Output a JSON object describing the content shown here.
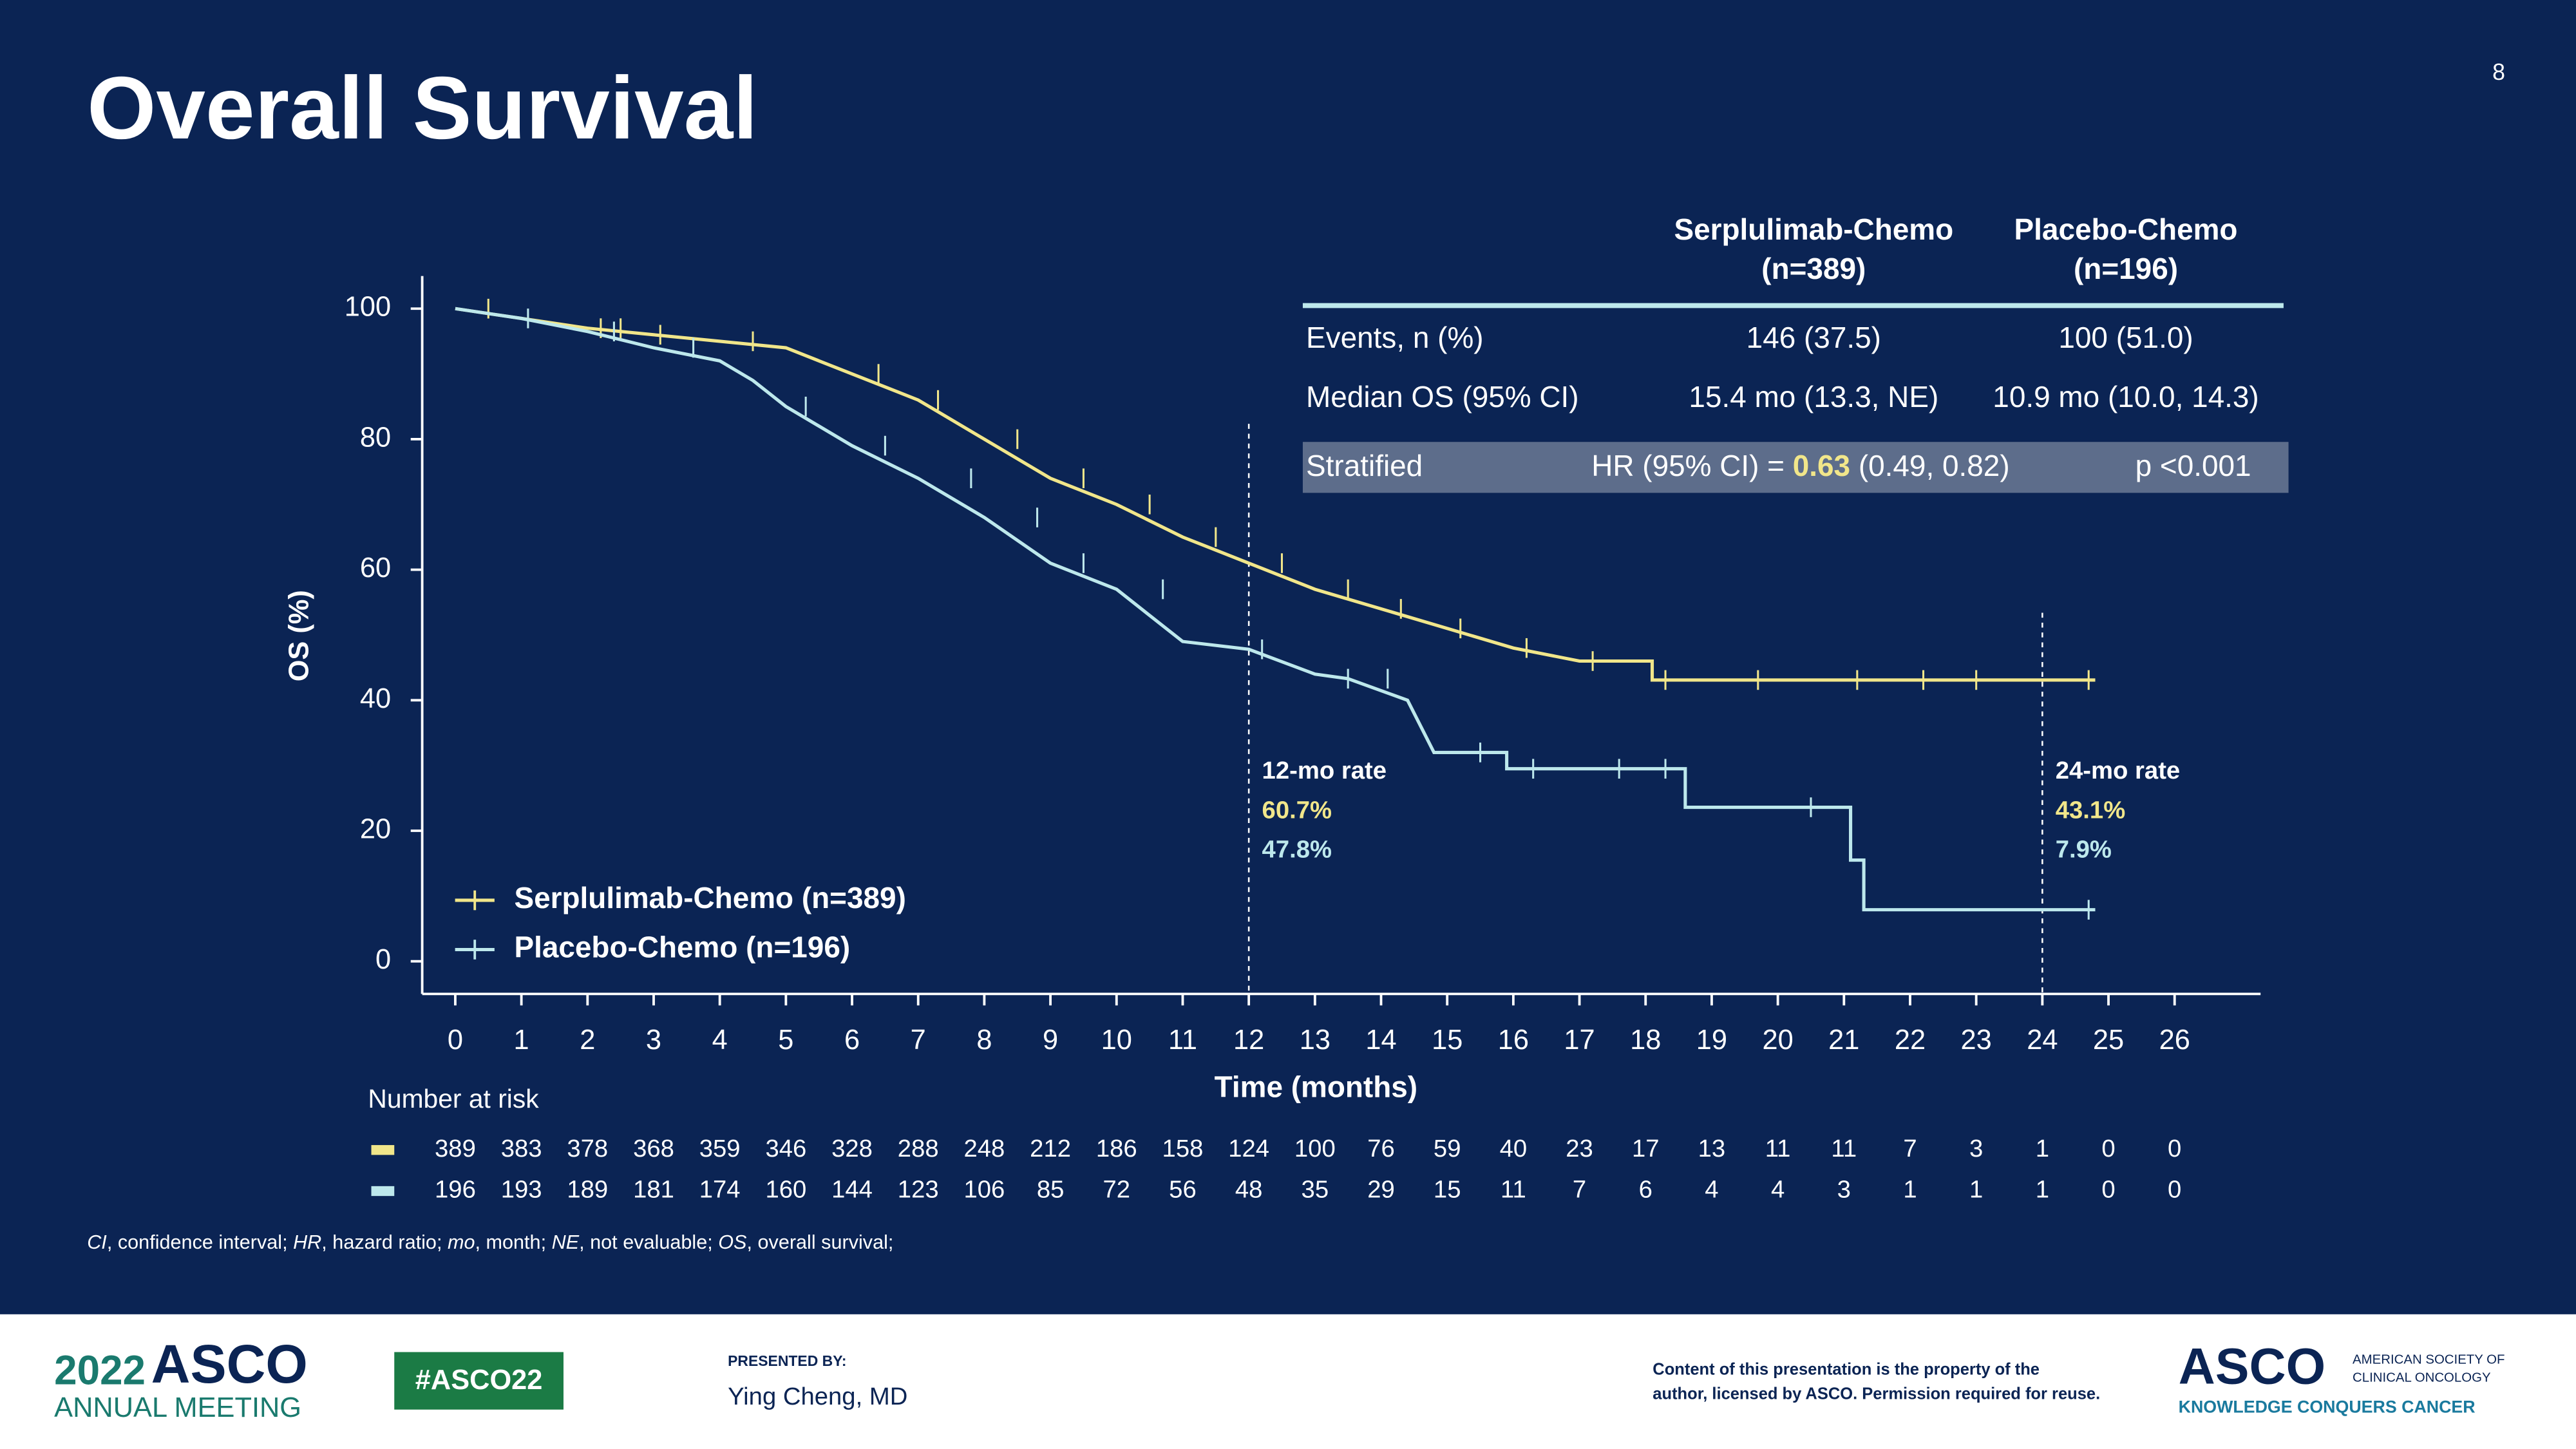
{
  "page_number": "8",
  "title": "Overall Survival",
  "chart_data": {
    "type": "line",
    "ylabel": "OS (%)",
    "xlabel": "Time (months)",
    "xlim": [
      -0.5,
      27.3
    ],
    "ylim": [
      -5,
      105
    ],
    "xticks": [
      0,
      1,
      2,
      3,
      4,
      5,
      6,
      7,
      8,
      9,
      10,
      11,
      12,
      13,
      14,
      15,
      16,
      17,
      18,
      19,
      20,
      21,
      22,
      23,
      24,
      25,
      26
    ],
    "yticks": [
      0,
      20,
      40,
      60,
      80,
      100
    ],
    "series": [
      {
        "name": "Serplulimab-Chemo (n=389)",
        "color": "#f1e68a",
        "x": [
          0,
          1,
          2,
          3,
          4,
          5,
          5.5,
          6,
          7,
          8,
          9,
          10,
          11,
          12,
          13,
          14,
          15,
          16,
          17,
          18.1,
          18.1,
          24.8
        ],
        "values": [
          100,
          98.5,
          97,
          96,
          95,
          94,
          92,
          90,
          86,
          80,
          74,
          70,
          65,
          61,
          57,
          54,
          51,
          48,
          46,
          46,
          43.1,
          43.1
        ],
        "censored_x": [
          0.5,
          2.2,
          2.5,
          3.1,
          4.5,
          6.4,
          7.3,
          8.5,
          9.5,
          10.5,
          11.5,
          12.5,
          13.5,
          14.3,
          15.2,
          16.2,
          17.2,
          18.3,
          19.7,
          21.2,
          22.2,
          23,
          24.7
        ]
      },
      {
        "name": "Placebo-Chemo (n=196)",
        "color": "#bde8ec",
        "x": [
          0,
          1,
          2,
          3,
          4,
          4.5,
          5,
          6,
          7,
          8,
          9,
          10,
          11,
          12,
          13,
          13.5,
          14.4,
          14.8,
          15.9,
          15.9,
          18.6,
          18.6,
          21.1,
          21.1,
          21.3,
          21.3,
          24.8
        ],
        "values": [
          100,
          98.5,
          96.5,
          94,
          92,
          89,
          85,
          79,
          74,
          68,
          61,
          57,
          49,
          47.8,
          44,
          43.3,
          40,
          32,
          32,
          29.5,
          29.5,
          23.6,
          23.6,
          15.5,
          15.5,
          7.9,
          7.9
        ],
        "censored_x": [
          1.1,
          2.4,
          3.6,
          5.3,
          6.5,
          7.8,
          8.8,
          9.5,
          10.7,
          12.2,
          13.5,
          14.1,
          15.5,
          16.3,
          17.6,
          18.3,
          20.5,
          24.7
        ]
      }
    ],
    "reference_lines": [
      {
        "x": 12,
        "label": "12-mo rate",
        "texts": [
          "60.7%",
          "47.8%"
        ]
      },
      {
        "x": 24,
        "label": "24-mo rate",
        "texts": [
          "43.1%",
          "7.9%"
        ]
      }
    ]
  },
  "risk_table": {
    "label": "Number at risk",
    "rows": [
      {
        "color": "#f1e68a",
        "values": [
          389,
          383,
          378,
          368,
          359,
          346,
          328,
          288,
          248,
          212,
          186,
          158,
          124,
          100,
          76,
          59,
          40,
          23,
          17,
          13,
          11,
          11,
          7,
          3,
          1,
          0,
          0
        ]
      },
      {
        "color": "#bde8ec",
        "values": [
          196,
          193,
          189,
          181,
          174,
          160,
          144,
          123,
          106,
          85,
          72,
          56,
          48,
          35,
          29,
          15,
          11,
          7,
          6,
          4,
          4,
          3,
          1,
          1,
          1,
          0,
          0
        ]
      }
    ]
  },
  "stats_table": {
    "headers": [
      [
        "Serplulimab-Chemo",
        "(n=389)"
      ],
      [
        "Placebo-Chemo",
        "(n=196)"
      ]
    ],
    "rows": [
      [
        "Events, n (%)",
        "146 (37.5)",
        "100 (51.0)"
      ],
      [
        "Median OS (95% CI)",
        "15.4 mo (13.3, NE)",
        "10.9 mo (10.0, 14.3)"
      ]
    ],
    "stratified": {
      "label": "Stratified",
      "hr_prefix": "HR (95% CI) = ",
      "hr": "0.63",
      "hr_ci": " (0.49, 0.82)",
      "p": "p <0.001"
    }
  },
  "footnote": [
    {
      "text": "CI",
      "italic": true
    },
    {
      "text": ", confidence interval; "
    },
    {
      "text": "HR",
      "italic": true
    },
    {
      "text": ", hazard ratio; "
    },
    {
      "text": "mo",
      "italic": true
    },
    {
      "text": ", month; "
    },
    {
      "text": "NE",
      "italic": true
    },
    {
      "text": ", not evaluable; "
    },
    {
      "text": "OS",
      "italic": true
    },
    {
      "text": ", overall survival;"
    }
  ],
  "footer": {
    "year": "2022",
    "brand": "ASCO",
    "meeting": "ANNUAL MEETING",
    "hashtag": "#ASCO22",
    "presented_by": "PRESENTED BY:",
    "presenter": "Ying Cheng, MD",
    "disclaimer": [
      "Content of this presentation is the property of the",
      "author, licensed by ASCO. Permission required for reuse."
    ],
    "society_lines": [
      "AMERICAN SOCIETY OF",
      "CLINICAL ONCOLOGY"
    ],
    "tagline": "KNOWLEDGE CONQUERS CANCER"
  }
}
